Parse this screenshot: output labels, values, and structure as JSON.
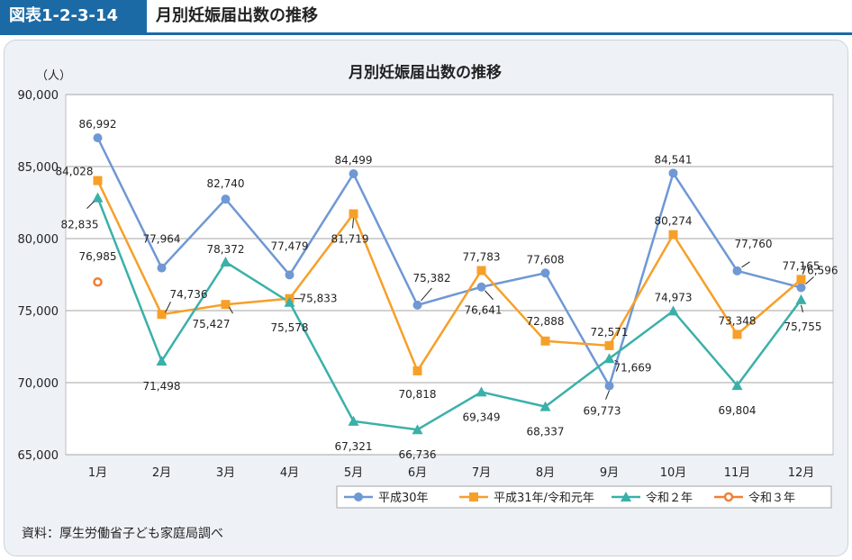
{
  "header": {
    "figure_id": "図表1-2-3-14",
    "title": "月別妊娠届出数の推移"
  },
  "source": "資料：厚生労働省子ども家庭局調べ",
  "colors": {
    "header_bg": "#1b6aa5",
    "panel_bg": "#eef2f7",
    "h30": "#6f98d4",
    "h31": "#f6a02a",
    "r2": "#3bb0a9",
    "r3": "#ef7f36"
  },
  "chart_data": {
    "type": "line",
    "title": "月別妊娠届出数の推移",
    "ylabel": "（人）",
    "xlabel": "",
    "ylim": [
      65000,
      90000
    ],
    "yticks": [
      "65,000",
      "70,000",
      "75,000",
      "80,000",
      "85,000",
      "90,000"
    ],
    "categories": [
      "1月",
      "2月",
      "3月",
      "4月",
      "5月",
      "6月",
      "7月",
      "8月",
      "9月",
      "10月",
      "11月",
      "12月"
    ],
    "grid": true,
    "legend_position": "bottom-right",
    "series": [
      {
        "name": "平成30年",
        "key": "h30",
        "marker": "circle",
        "values": [
          86992,
          77964,
          82740,
          77479,
          84499,
          75382,
          76641,
          77608,
          69773,
          84541,
          77760,
          76596
        ],
        "labels": [
          "86,992",
          "77,964",
          "82,740",
          "77,479",
          "84,499",
          "75,382",
          "76,641",
          "77,608",
          "69,773",
          "84,541",
          "77,760",
          "76,596"
        ]
      },
      {
        "name": "平成31年/令和元年",
        "key": "h31",
        "marker": "square",
        "values": [
          84028,
          74736,
          75427,
          75833,
          81719,
          70818,
          77783,
          72888,
          72571,
          80274,
          73348,
          77165
        ],
        "labels": [
          "84,028",
          "74,736",
          "75,427",
          "75,833",
          "81,719",
          "70,818",
          "77,783",
          "72,888",
          "72,571",
          "80,274",
          "73,348",
          "77,165"
        ]
      },
      {
        "name": "令和２年",
        "key": "r2",
        "marker": "triangle",
        "values": [
          82835,
          71498,
          78372,
          75578,
          67321,
          66736,
          69349,
          68337,
          71669,
          74973,
          69804,
          75755
        ],
        "labels": [
          "82,835",
          "71,498",
          "78,372",
          "75,578",
          "67,321",
          "66,736",
          "69,349",
          "68,337",
          "71,669",
          "74,973",
          "69,804",
          "75,755"
        ]
      },
      {
        "name": "令和３年",
        "key": "r3",
        "marker": "open-circle",
        "values": [
          76985,
          null,
          null,
          null,
          null,
          null,
          null,
          null,
          null,
          null,
          null,
          null
        ],
        "labels": [
          "76,985",
          "",
          "",
          "",
          "",
          "",
          "",
          "",
          "",
          "",
          "",
          ""
        ]
      }
    ]
  }
}
